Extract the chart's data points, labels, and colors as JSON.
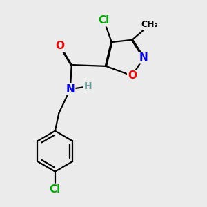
{
  "bg_color": "#ebebeb",
  "bond_color": "#000000",
  "bond_width": 1.6,
  "atom_colors": {
    "C": "#000000",
    "H": "#6a9a9a",
    "N": "#0000ff",
    "O": "#ff0000",
    "Cl": "#00aa00"
  },
  "font_size": 11,
  "fig_size": [
    3.0,
    3.0
  ],
  "dpi": 100
}
